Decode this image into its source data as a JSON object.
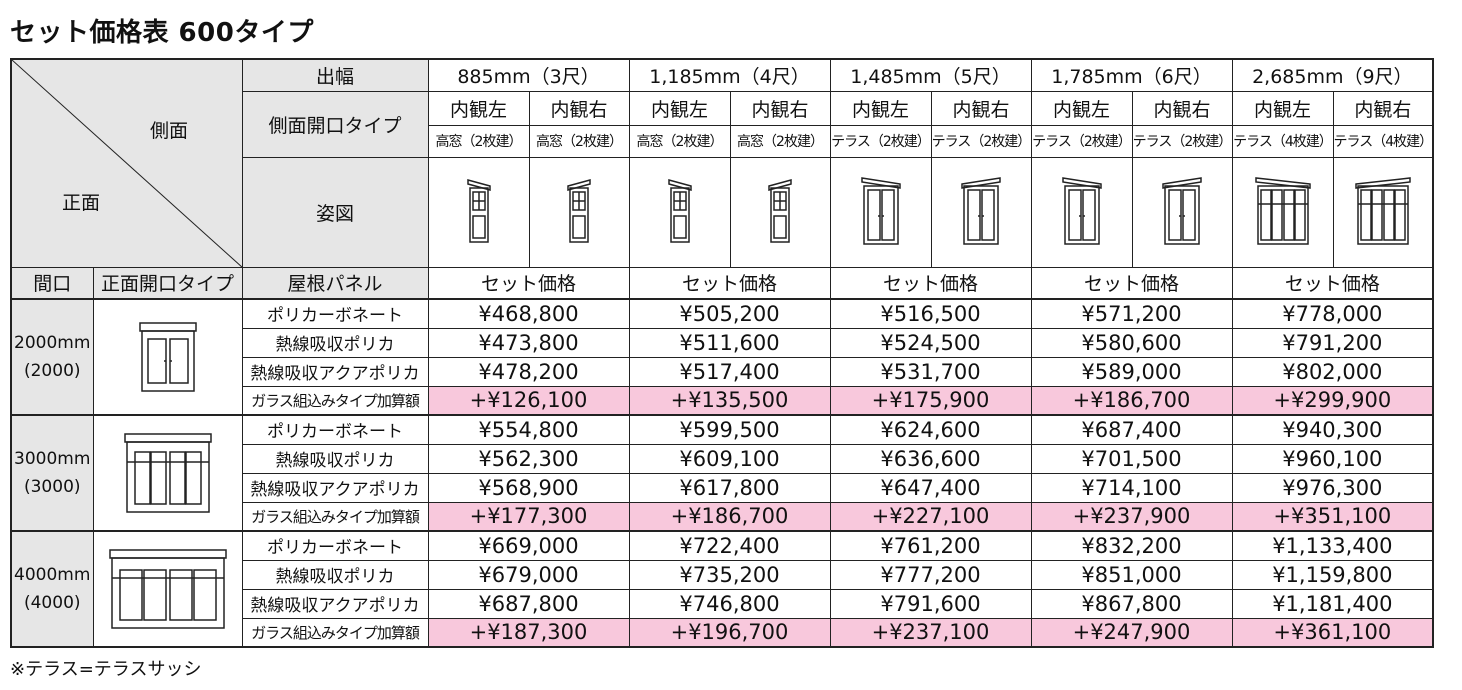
{
  "header": {
    "title": "セット価格表 600タイプ"
  },
  "table": {
    "corner": {
      "side": "側面",
      "front": "正面"
    },
    "width_label": "出幅",
    "widths": [
      "885mm（3尺）",
      "1,185mm（4尺）",
      "1,485mm（5尺）",
      "1,785mm（6尺）",
      "2,685mm（9尺）"
    ],
    "side_type_label": "側面開口タイプ",
    "side_positions": [
      "内観左",
      "内観右",
      "内観左",
      "内観右",
      "内観左",
      "内観右",
      "内観左",
      "内観右",
      "内観左",
      "内観右"
    ],
    "side_types": [
      "高窓（2枚建）",
      "高窓（2枚建）",
      "高窓（2枚建）",
      "高窓（2枚建）",
      "テラス（2枚建）",
      "テラス（2枚建）",
      "テラス（2枚建）",
      "テラス（2枚建）",
      "テラス（4枚建）",
      "テラス（4枚建）"
    ],
    "figure_label": "姿図",
    "frontage_label": "間口",
    "front_type_label": "正面開口タイプ",
    "roof_label": "屋根パネル",
    "price_labels": [
      "セット価格",
      "セット価格",
      "セット価格",
      "セット価格",
      "セット価格"
    ],
    "blocks": [
      {
        "frontage": "2000mm",
        "frontage_sub": "(2000)",
        "rows": [
          {
            "panel": "ポリカーボネート",
            "prices": [
              "¥468,800",
              "¥505,200",
              "¥516,500",
              "¥571,200",
              "¥778,000"
            ]
          },
          {
            "panel": "熱線吸収ポリカ",
            "prices": [
              "¥473,800",
              "¥511,600",
              "¥524,500",
              "¥580,600",
              "¥791,200"
            ]
          },
          {
            "panel": "熱線吸収アクアポリカ",
            "prices": [
              "¥478,200",
              "¥517,400",
              "¥531,700",
              "¥589,000",
              "¥802,000"
            ]
          },
          {
            "panel": "ガラス組込みタイプ加算額",
            "prices": [
              "+¥126,100",
              "+¥135,500",
              "+¥175,900",
              "+¥186,700",
              "+¥299,900"
            ]
          }
        ]
      },
      {
        "frontage": "3000mm",
        "frontage_sub": "(3000)",
        "rows": [
          {
            "panel": "ポリカーボネート",
            "prices": [
              "¥554,800",
              "¥599,500",
              "¥624,600",
              "¥687,400",
              "¥940,300"
            ]
          },
          {
            "panel": "熱線吸収ポリカ",
            "prices": [
              "¥562,300",
              "¥609,100",
              "¥636,600",
              "¥701,500",
              "¥960,100"
            ]
          },
          {
            "panel": "熱線吸収アクアポリカ",
            "prices": [
              "¥568,900",
              "¥617,800",
              "¥647,400",
              "¥714,100",
              "¥976,300"
            ]
          },
          {
            "panel": "ガラス組込みタイプ加算額",
            "prices": [
              "+¥177,300",
              "+¥186,700",
              "+¥227,100",
              "+¥237,900",
              "+¥351,100"
            ]
          }
        ]
      },
      {
        "frontage": "4000mm",
        "frontage_sub": "(4000)",
        "rows": [
          {
            "panel": "ポリカーボネート",
            "prices": [
              "¥669,000",
              "¥722,400",
              "¥761,200",
              "¥832,200",
              "¥1,133,400"
            ]
          },
          {
            "panel": "熱線吸収ポリカ",
            "prices": [
              "¥679,000",
              "¥735,200",
              "¥777,200",
              "¥851,000",
              "¥1,159,800"
            ]
          },
          {
            "panel": "熱線吸収アクアポリカ",
            "prices": [
              "¥687,800",
              "¥746,800",
              "¥791,600",
              "¥867,800",
              "¥1,181,400"
            ]
          },
          {
            "panel": "ガラス組込みタイプ加算額",
            "prices": [
              "+¥187,300",
              "+¥196,700",
              "+¥237,100",
              "+¥247,900",
              "+¥361,100"
            ]
          }
        ]
      }
    ]
  },
  "footnote": "※テラス=テラスサッシ"
}
